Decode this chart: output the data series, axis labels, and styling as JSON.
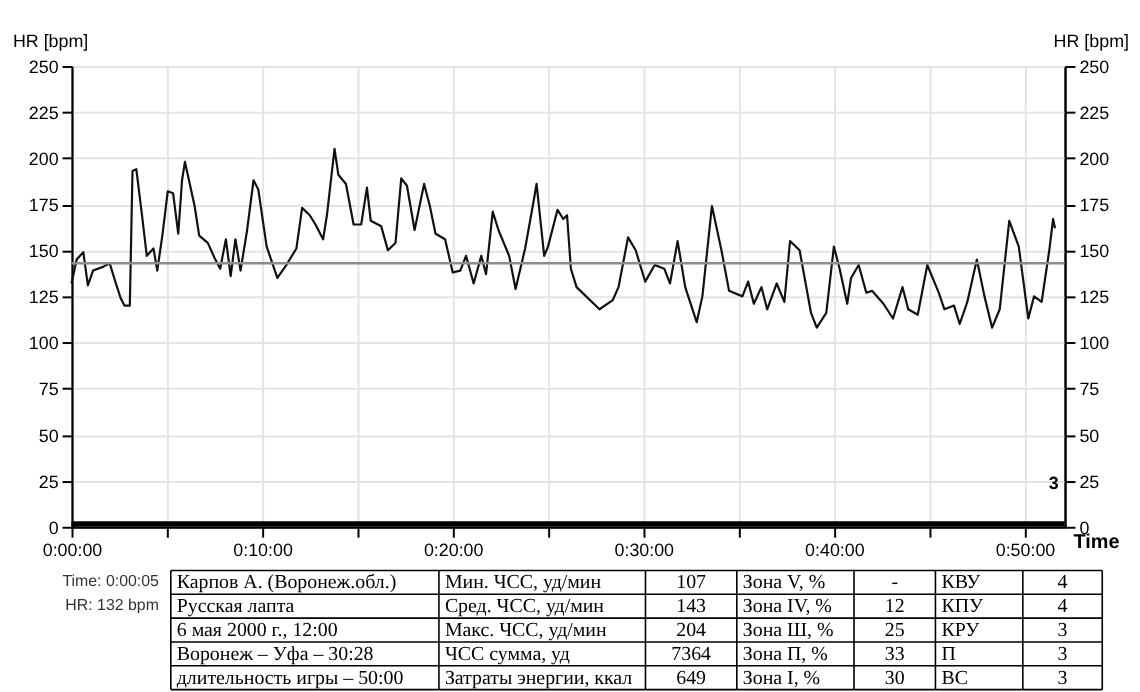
{
  "chart_data": {
    "type": "line",
    "xlabel": "Time",
    "ylabel": "HR [bpm]",
    "y2label": "HR [bpm]",
    "x": [
      0,
      0.27,
      0.62,
      0.86,
      1.13,
      1.65,
      2.0,
      2.3,
      2.58,
      2.78,
      3.06,
      3.2,
      3.4,
      3.7,
      3.95,
      4.3,
      4.5,
      4.78,
      5.05,
      5.33,
      5.6,
      5.8,
      5.95,
      6.46,
      6.7,
      7.15,
      7.5,
      7.8,
      8.1,
      8.35,
      8.6,
      8.87,
      9.2,
      9.55,
      9.8,
      10.24,
      10.8,
      11.27,
      11.8,
      12.1,
      12.5,
      12.8,
      13.2,
      13.4,
      13.8,
      14.0,
      14.4,
      14.8,
      15.2,
      15.5,
      15.7,
      16.25,
      16.6,
      17.0,
      17.3,
      17.6,
      18.0,
      18.5,
      18.8,
      19.1,
      19.6,
      20.0,
      20.4,
      20.7,
      21.1,
      21.5,
      21.75,
      22.1,
      22.4,
      22.96,
      23.3,
      23.8,
      24.2,
      24.4,
      24.8,
      25.0,
      25.5,
      25.8,
      26.0,
      26.2,
      26.5,
      27.0,
      27.7,
      28.4,
      28.7,
      29.2,
      29.6,
      30.1,
      30.6,
      31.1,
      31.4,
      31.8,
      32.2,
      32.8,
      33.1,
      33.6,
      34.1,
      34.5,
      35.2,
      35.5,
      35.8,
      36.2,
      36.5,
      37.0,
      37.4,
      37.7,
      38.2,
      38.8,
      39.1,
      39.6,
      40.0,
      40.3,
      40.7,
      40.9,
      41.3,
      41.7,
      42.0,
      42.6,
      43.1,
      43.6,
      43.9,
      44.4,
      44.9,
      45.5,
      45.8,
      46.3,
      46.6,
      47.0,
      47.5,
      47.9,
      48.3,
      48.7,
      49.2,
      49.7,
      50.2,
      50.5,
      50.9,
      51.3,
      51.5,
      51.6
    ],
    "series": [
      {
        "color": "#111111",
        "values": [
          132,
          145,
          149,
          131,
          139,
          141,
          143,
          133,
          124,
          120,
          120,
          193,
          194,
          169,
          147,
          151,
          139,
          159,
          182,
          181,
          159,
          188,
          198,
          174,
          158,
          154,
          146,
          140,
          156,
          136,
          156,
          139,
          160,
          188,
          183,
          152,
          135,
          142,
          151,
          173,
          169,
          164,
          156,
          169,
          205,
          191,
          186,
          164,
          164,
          184,
          166,
          163,
          150,
          154,
          189,
          185,
          161,
          186,
          174,
          159,
          156,
          138,
          139,
          147,
          132,
          147,
          137,
          171,
          161,
          147,
          129,
          151,
          174,
          186,
          147,
          152,
          172,
          167,
          169,
          140,
          130,
          125,
          118,
          123,
          130,
          157,
          150,
          133,
          142,
          140,
          132,
          155,
          130,
          111,
          125,
          174,
          150,
          128,
          125,
          133,
          121,
          130,
          118,
          132,
          122,
          155,
          150,
          116,
          108,
          116,
          152,
          140,
          121,
          135,
          142,
          127,
          128,
          121,
          113,
          130,
          118,
          115,
          142,
          127,
          118,
          120,
          110,
          122,
          145,
          125,
          108,
          118,
          166,
          152,
          113,
          125,
          122,
          150,
          167,
          162
        ]
      }
    ],
    "xlim": [
      0,
      52.1
    ],
    "ylim": [
      0,
      250
    ],
    "y2lim": [
      0,
      250
    ],
    "xticks": [
      {
        "value": 0,
        "label": "0:00:00"
      },
      {
        "value": 5,
        "label": null
      },
      {
        "value": 10,
        "label": "0:10:00"
      },
      {
        "value": 15,
        "label": null
      },
      {
        "value": 20,
        "label": "0:20:00"
      },
      {
        "value": 25,
        "label": null
      },
      {
        "value": 30,
        "label": "0:30:00"
      },
      {
        "value": 35,
        "label": null
      },
      {
        "value": 40,
        "label": "0:40:00"
      },
      {
        "value": 45,
        "label": null
      },
      {
        "value": 50,
        "label": "0:50:00"
      }
    ],
    "yticks": [
      0,
      25,
      50,
      75,
      100,
      125,
      150,
      175,
      200,
      225,
      250
    ],
    "y2ticks": [
      0,
      25,
      50,
      75,
      100,
      125,
      150,
      175,
      200,
      225,
      250
    ],
    "ref_lines": [
      {
        "axis": "y",
        "value": 143,
        "color": "#8c8c8c"
      }
    ],
    "bands": [
      {
        "axis": "y",
        "from": 0,
        "to": 3,
        "color": "#000000"
      }
    ],
    "grid": true,
    "legend": false,
    "marker": "none",
    "line_style": "solid",
    "annotations": [
      "Time: 0:00:05",
      "HR: 132 bpm",
      "Карпов А. (Воронеж.обл.)",
      "Мин. ЧСС, уд/мин",
      "107",
      "Зона V, %",
      "-",
      "КВУ",
      "4",
      "Русская лапта",
      "Сред. ЧСС, уд/мин",
      "143",
      "Зона IV, %",
      "12",
      "КПУ",
      "4",
      "6 мая 2000 г., 12:00",
      "Макс. ЧСС, уд/мин",
      "204",
      "Зона Ш, %",
      "25",
      "КРУ",
      "3",
      "Воронеж – Уфа – 30:28",
      "ЧСС сумма, уд",
      "7364",
      "Зона П, %",
      "33",
      "П",
      "3",
      "длительность игры – 50:00",
      "Затраты энергии, ккал",
      "649",
      "Зона I, %",
      "30",
      "ВС",
      "3",
      "3"
    ]
  }
}
